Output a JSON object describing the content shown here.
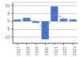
{
  "chart_data": {
    "type": "bar",
    "categories": [
      "2017",
      "2018",
      "2019",
      "2020",
      "2021",
      "2022",
      "2023"
    ],
    "series": [
      {
        "type": "bar",
        "color": "#4472c4",
        "values": [
          1.0,
          2.2,
          -1.0,
          -11.5,
          9.5,
          1.5,
          1.2
        ]
      },
      {
        "type": "line",
        "color": "#8496b0",
        "line_style": "dashed",
        "values": [
          1.2,
          0.8,
          0.2,
          -6.0,
          4.7,
          1.9,
          0.5
        ]
      }
    ],
    "ylim": [
      -14,
      12
    ],
    "yticks": [
      -10,
      -5,
      0,
      5,
      10
    ],
    "grid": true
  }
}
